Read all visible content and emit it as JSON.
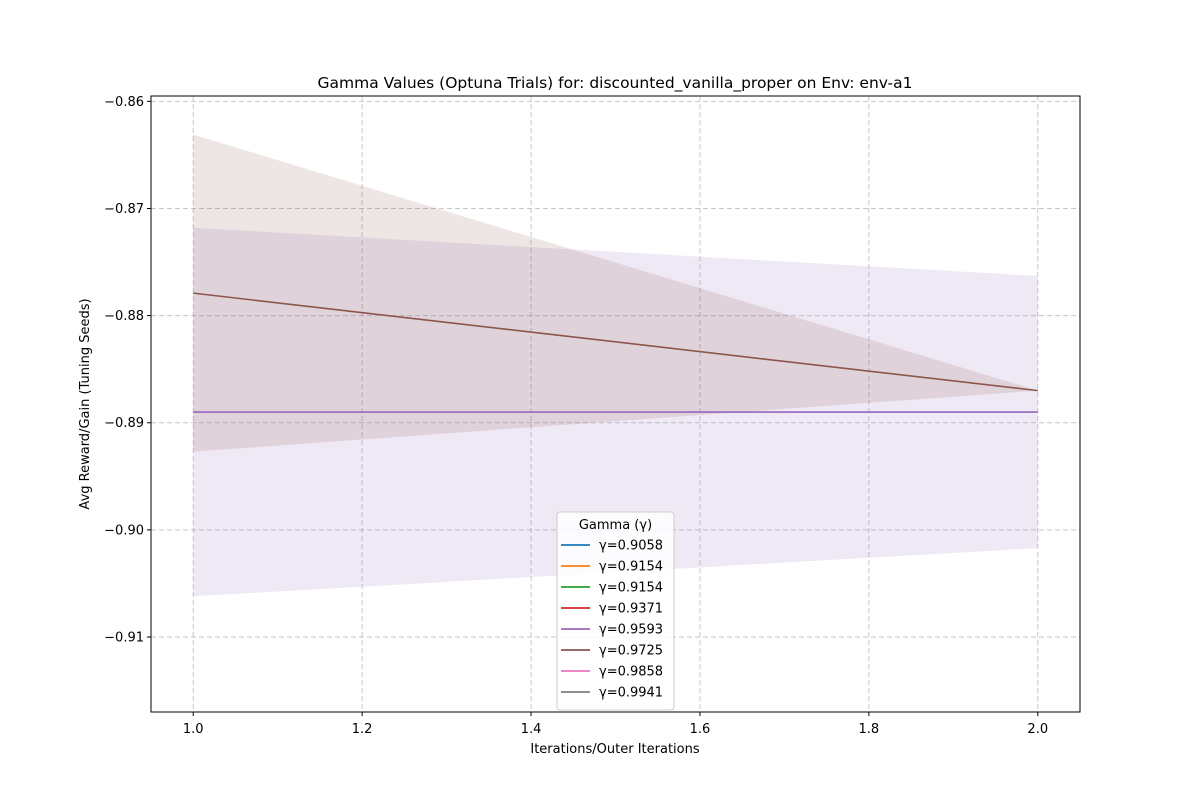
{
  "chart_data": {
    "type": "line",
    "title": "Gamma Values (Optuna Trials) for: discounted_vanilla_proper on Env: env-a1",
    "xlabel": "Iterations/Outer Iterations",
    "ylabel": "Avg Reward/Gain (Tuning Seeds)",
    "xlim": [
      0.95,
      2.05
    ],
    "ylim": [
      -0.917,
      -0.8595
    ],
    "x_ticks": [
      1.0,
      1.2,
      1.4,
      1.6,
      1.8,
      2.0
    ],
    "x_tick_labels": [
      "1.0",
      "1.2",
      "1.4",
      "1.6",
      "1.8",
      "2.0"
    ],
    "y_ticks": [
      -0.86,
      -0.87,
      -0.88,
      -0.89,
      -0.9,
      -0.91
    ],
    "y_tick_labels": [
      "−0.86",
      "−0.87",
      "−0.88",
      "−0.89",
      "−0.90",
      "−0.91"
    ],
    "grid": true,
    "legend": {
      "title": "Gamma (γ)",
      "placement": "lower center"
    },
    "series": [
      {
        "name": "γ=0.9058",
        "color": "#1f77b4",
        "x": [],
        "y": []
      },
      {
        "name": "γ=0.9154",
        "color": "#ff7f0e",
        "x": [],
        "y": []
      },
      {
        "name": "γ=0.9154",
        "color": "#2ca02c",
        "x": [],
        "y": []
      },
      {
        "name": "γ=0.9371",
        "color": "#d62728",
        "x": [],
        "y": []
      },
      {
        "name": "γ=0.9593",
        "color": "#9467bd",
        "x": [
          1.0,
          2.0
        ],
        "y": [
          -0.889,
          -0.889
        ],
        "band_low": [
          -0.9062,
          -0.9017
        ],
        "band_high": [
          -0.8718,
          -0.8763
        ]
      },
      {
        "name": "γ=0.9725",
        "color": "#8c564b",
        "x": [
          1.0,
          2.0
        ],
        "y": [
          -0.8779,
          -0.887
        ],
        "band_low": [
          -0.8927,
          -0.887
        ],
        "band_high": [
          -0.8631,
          -0.887
        ]
      },
      {
        "name": "γ=0.9858",
        "color": "#e377c2",
        "x": [],
        "y": []
      },
      {
        "name": "γ=0.9941",
        "color": "#7f7f7f",
        "x": [],
        "y": []
      }
    ]
  }
}
